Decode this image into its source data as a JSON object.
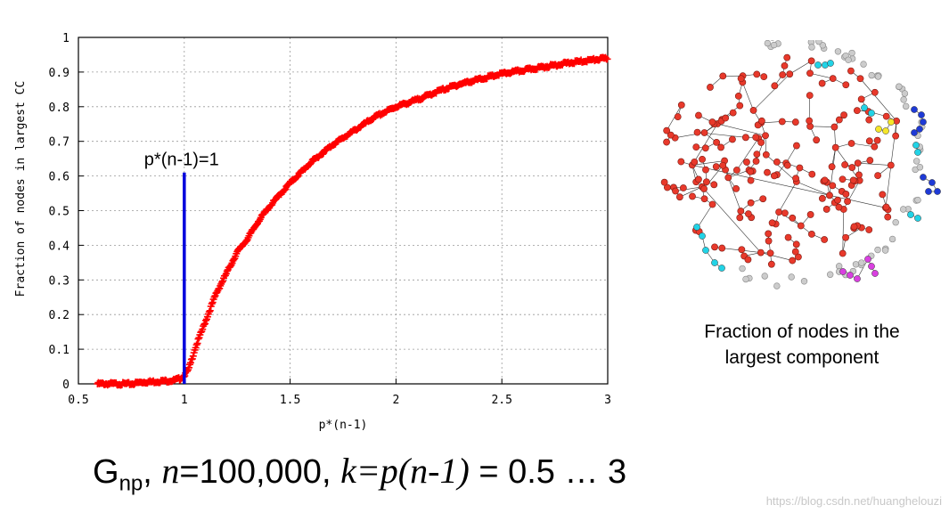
{
  "chart_data": {
    "type": "scatter",
    "xlabel": "p*(n-1)",
    "ylabel": "Fraction of nodes in largest CC",
    "xlim": [
      0.5,
      3
    ],
    "ylim": [
      0,
      1
    ],
    "xticks": [
      "0.5",
      "1",
      "1.5",
      "2",
      "2.5",
      "3"
    ],
    "yticks": [
      "0",
      "0.1",
      "0.2",
      "0.3",
      "0.4",
      "0.5",
      "0.6",
      "0.7",
      "0.8",
      "0.9",
      "1"
    ],
    "grid": true,
    "marker": "+",
    "series": [
      {
        "color": "#ff0000",
        "x": [
          0.59,
          0.65,
          0.7,
          0.75,
          0.8,
          0.85,
          0.9,
          0.95,
          0.98,
          1.0,
          1.02,
          1.05,
          1.1,
          1.15,
          1.2,
          1.25,
          1.3,
          1.35,
          1.4,
          1.5,
          1.6,
          1.7,
          1.8,
          1.9,
          2.0,
          2.1,
          2.2,
          2.3,
          2.4,
          2.5,
          2.6,
          2.7,
          2.8,
          2.9,
          3.0
        ],
        "y": [
          0.0,
          0.0,
          0.0,
          0.0,
          0.005,
          0.006,
          0.008,
          0.01,
          0.015,
          0.025,
          0.04,
          0.1,
          0.18,
          0.26,
          0.32,
          0.38,
          0.42,
          0.47,
          0.51,
          0.58,
          0.64,
          0.69,
          0.73,
          0.77,
          0.8,
          0.82,
          0.845,
          0.865,
          0.88,
          0.895,
          0.905,
          0.915,
          0.925,
          0.933,
          0.94
        ]
      }
    ],
    "vline": {
      "x": 1,
      "y_top": 0.61,
      "color": "#0000dd",
      "label": "p*(n-1)=1"
    }
  },
  "network": {
    "caption_line1": "Fraction of nodes in the",
    "caption_line2": "largest component",
    "colors": {
      "giant": "#e8392b",
      "isolated": "#cccccc",
      "cyan": "#22d3e6",
      "blue": "#1e3ad6",
      "yellow": "#f5e62a",
      "magenta": "#d940e0"
    }
  },
  "formula": {
    "g": "G",
    "g_sub": "np",
    "sep1": ", ",
    "n_var": "n",
    "n_val": "=100,000, ",
    "k_expr": "k=p(n-1)",
    "range": " = 0.5 … 3"
  },
  "watermark": "https://blog.csdn.net/huanghelouzi"
}
